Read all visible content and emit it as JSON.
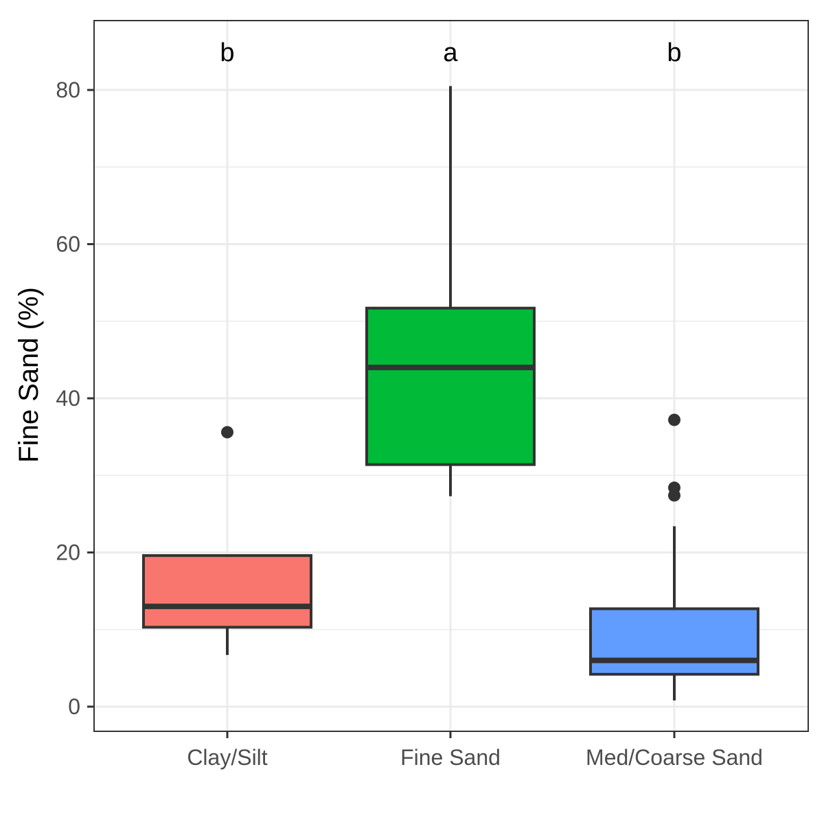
{
  "chart_data": {
    "type": "box",
    "title": "",
    "xlabel": "",
    "ylabel": "Fine Sand (%)",
    "ylim": [
      -3.2,
      89
    ],
    "yticks": [
      0,
      20,
      40,
      60,
      80
    ],
    "ytick_labels": [
      "0",
      "20",
      "40",
      "60",
      "80"
    ],
    "minor_grid": [
      10,
      30,
      50,
      70
    ],
    "grid": true,
    "legend": "none",
    "categories": [
      "Clay/Silt",
      "Fine Sand",
      "Med/Coarse Sand"
    ],
    "boxes": [
      {
        "category": "Clay/Silt",
        "whisker_low": 6.7,
        "q1": 10.3,
        "median": 13.0,
        "q3": 19.6,
        "whisker_high": 19.6,
        "outliers": [
          35.6
        ],
        "color": "#F8766D",
        "letter": "b"
      },
      {
        "category": "Fine Sand",
        "whisker_low": 27.3,
        "q1": 31.4,
        "median": 44.0,
        "q3": 51.7,
        "whisker_high": 80.5,
        "outliers": [],
        "color": "#00BA38",
        "letter": "a"
      },
      {
        "category": "Med/Coarse Sand",
        "whisker_low": 0.8,
        "q1": 4.2,
        "median": 6.0,
        "q3": 12.7,
        "whisker_high": 23.4,
        "outliers": [
          27.4,
          28.4,
          37.2
        ],
        "color": "#619CFF",
        "letter": "b"
      }
    ],
    "colors": {
      "box_outline": "#333333",
      "grid": "#ebebeb",
      "panel_border": "#333333"
    }
  }
}
